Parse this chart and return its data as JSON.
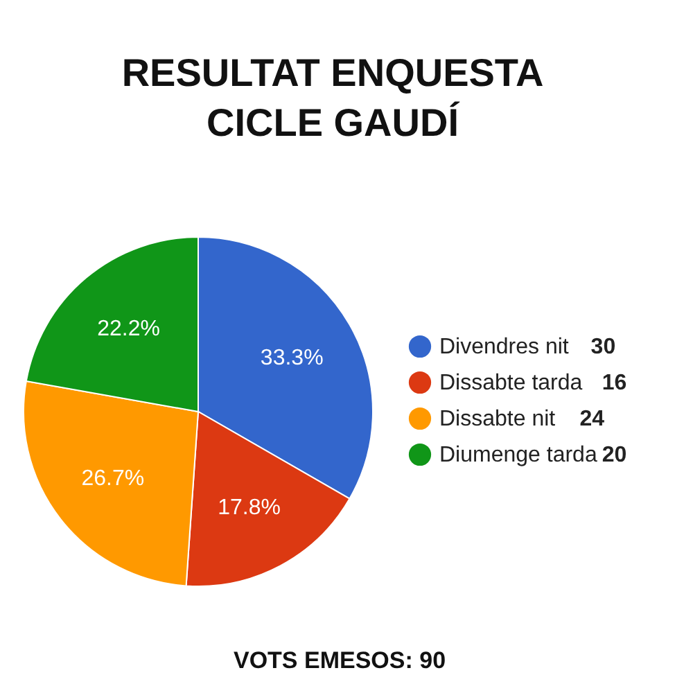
{
  "chart_data": {
    "type": "pie",
    "title": [
      "RESULTAT ENQUESTA",
      "CICLE GAUDÍ"
    ],
    "categories": [
      "Divendres nit 30",
      "Dissabte tarda 16",
      "Dissabte nit 24",
      "Diumenge tarda 20"
    ],
    "values": [
      33.3,
      17.8,
      26.7,
      22.2
    ],
    "colors": [
      "#3366cc",
      "#dc3912",
      "#ff9900",
      "#109618"
    ],
    "value_labels": [
      "33.3%",
      "17.8%",
      "26.7%",
      "22.2%"
    ],
    "legend": "right",
    "annotations": [
      "VOTS EMESOS: 90"
    ]
  }
}
